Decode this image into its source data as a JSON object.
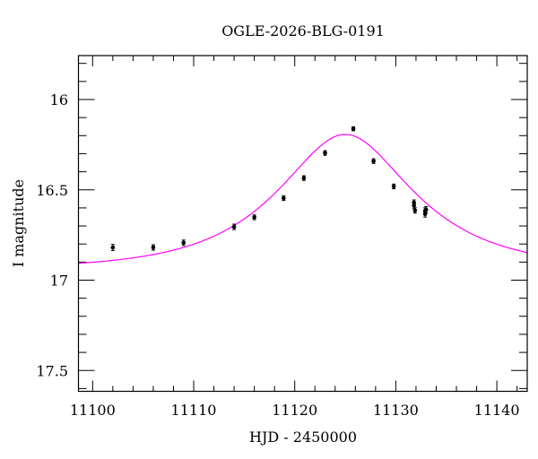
{
  "chart_data": {
    "type": "scatter",
    "title": "OGLE-2026-BLG-0191",
    "xlabel": "HJD - 2450000",
    "ylabel": "I magnitude",
    "xlim": [
      11098.6,
      11143.1
    ],
    "ylim": [
      17.61,
      15.76
    ],
    "y_inverted": true,
    "grid": false,
    "x_ticks": [
      "11100",
      "11110",
      "11120",
      "11130",
      "11140"
    ],
    "y_ticks": [
      "16",
      "16.5",
      "17",
      "17.5"
    ],
    "colors": {
      "points": "#000000",
      "model": "#ff00ff"
    },
    "points": [
      {
        "x": 11102.0,
        "y": 16.819,
        "err": 0.012
      },
      {
        "x": 11106.0,
        "y": 16.819,
        "err": 0.01
      },
      {
        "x": 11109.0,
        "y": 16.793,
        "err": 0.01
      },
      {
        "x": 11114.0,
        "y": 16.705,
        "err": 0.01
      },
      {
        "x": 11116.0,
        "y": 16.652,
        "err": 0.008
      },
      {
        "x": 11118.9,
        "y": 16.546,
        "err": 0.008
      },
      {
        "x": 11120.9,
        "y": 16.435,
        "err": 0.008
      },
      {
        "x": 11123.0,
        "y": 16.296,
        "err": 0.008
      },
      {
        "x": 11125.8,
        "y": 16.162,
        "err": 0.006
      },
      {
        "x": 11127.8,
        "y": 16.341,
        "err": 0.008
      },
      {
        "x": 11129.8,
        "y": 16.481,
        "err": 0.008
      },
      {
        "x": 11131.8,
        "y": 16.571,
        "err": 0.01
      },
      {
        "x": 11131.8,
        "y": 16.587,
        "err": 0.01
      },
      {
        "x": 11131.9,
        "y": 16.614,
        "err": 0.01
      },
      {
        "x": 11132.9,
        "y": 16.617,
        "err": 0.012
      },
      {
        "x": 11132.9,
        "y": 16.634,
        "err": 0.012
      },
      {
        "x": 11133.0,
        "y": 16.61,
        "err": 0.012
      }
    ],
    "model": {
      "type": "point-lens",
      "t0": 11125.0,
      "u0": 0.56,
      "tE": 10.9,
      "baseline_mag": 16.94
    }
  }
}
